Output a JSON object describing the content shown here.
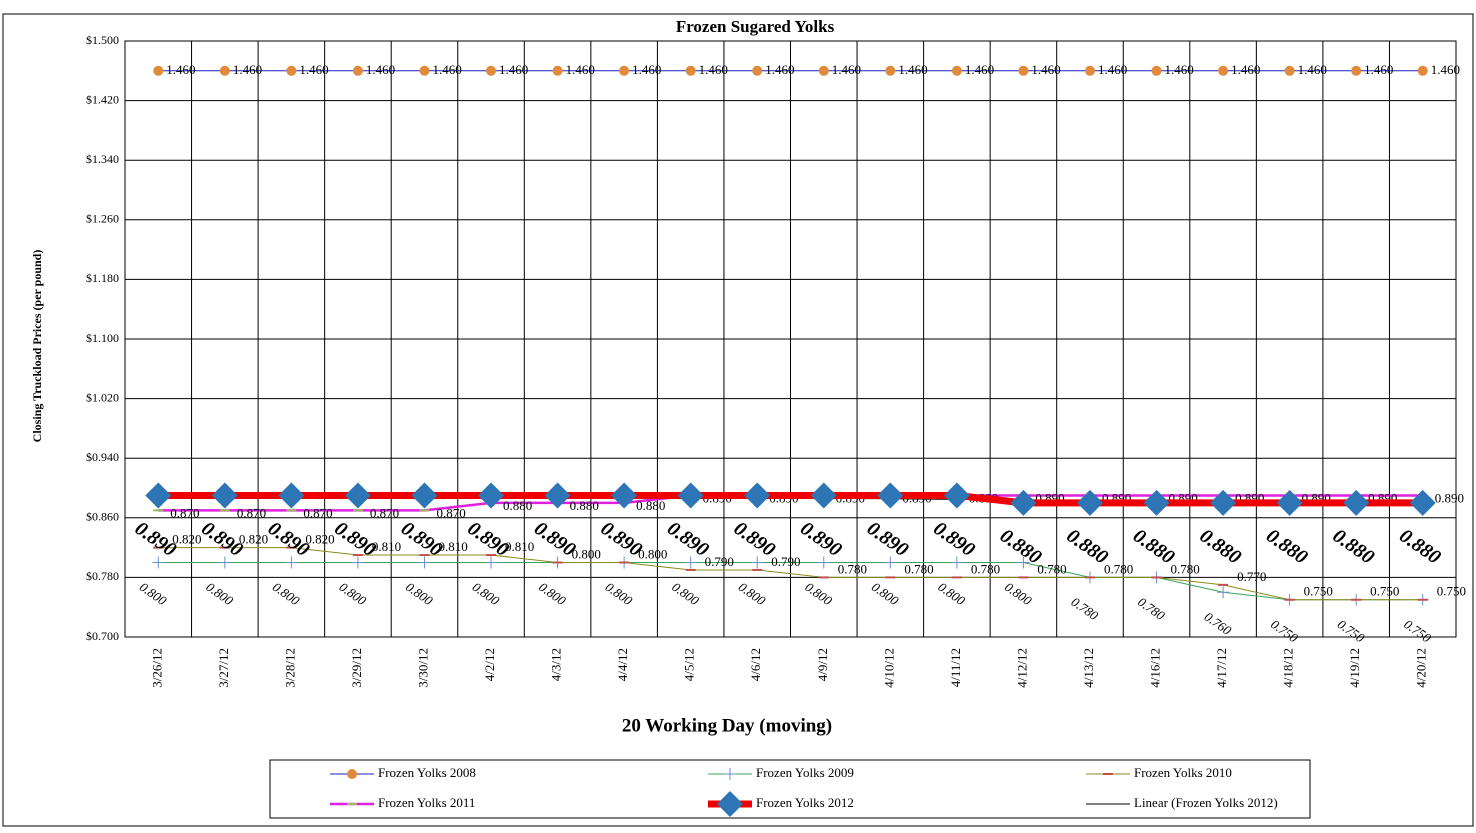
{
  "chart_data": {
    "type": "line",
    "title": "Frozen Sugared Yolks",
    "x_label": "20 Working Day (moving)",
    "y_label": "Closing Truckload Prices (per pound)",
    "categories": [
      "3/26/12",
      "3/27/12",
      "3/28/12",
      "3/29/12",
      "3/30/12",
      "4/2/12",
      "4/3/12",
      "4/4/12",
      "4/5/12",
      "4/6/12",
      "4/9/12",
      "4/10/12",
      "4/11/12",
      "4/12/12",
      "4/13/12",
      "4/16/12",
      "4/17/12",
      "4/18/12",
      "4/19/12",
      "4/20/12"
    ],
    "ylim": [
      0.7,
      1.5
    ],
    "yticks": [
      {
        "value": 0.7,
        "label": "$0.700"
      },
      {
        "value": 0.78,
        "label": "$0.780"
      },
      {
        "value": 0.86,
        "label": "$0.860"
      },
      {
        "value": 0.94,
        "label": "$0.940"
      },
      {
        "value": 1.02,
        "label": "$1.020"
      },
      {
        "value": 1.1,
        "label": "$1.100"
      },
      {
        "value": 1.18,
        "label": "$1.180"
      },
      {
        "value": 1.26,
        "label": "$1.260"
      },
      {
        "value": 1.34,
        "label": "$1.340"
      },
      {
        "value": 1.42,
        "label": "$1.420"
      },
      {
        "value": 1.5,
        "label": "$1.500"
      }
    ],
    "grid": true,
    "series": [
      {
        "name": "Frozen Yolks 2008",
        "color": "#1f1fbf",
        "marker_color": "#e08a3c",
        "values": [
          1.46,
          1.46,
          1.46,
          1.46,
          1.46,
          1.46,
          1.46,
          1.46,
          1.46,
          1.46,
          1.46,
          1.46,
          1.46,
          1.46,
          1.46,
          1.46,
          1.46,
          1.46,
          1.46,
          1.46
        ],
        "value_labels": [
          "1.460",
          "1.460",
          "1.460",
          "1.460",
          "1.460",
          "1.460",
          "1.460",
          "1.460",
          "1.460",
          "1.460",
          "1.460",
          "1.460",
          "1.460",
          "1.460",
          "1.460",
          "1.460",
          "1.460",
          "1.460",
          "1.460",
          "1.460"
        ]
      },
      {
        "name": "Frozen Yolks 2009",
        "color": "#3aa35a",
        "marker_color": "#6a8fd0",
        "values": [
          0.8,
          0.8,
          0.8,
          0.8,
          0.8,
          0.8,
          0.8,
          0.8,
          0.8,
          0.8,
          0.8,
          0.8,
          0.8,
          0.8,
          0.78,
          0.78,
          0.76,
          0.75,
          0.75,
          0.75
        ],
        "value_labels": [
          "0.800",
          "0.800",
          "0.800",
          "0.800",
          "0.800",
          "0.800",
          "0.800",
          "0.800",
          "0.800",
          "0.800",
          "0.800",
          "0.800",
          "0.800",
          "0.800",
          "0.780",
          "0.780",
          "0.760",
          "0.750",
          "0.750",
          "0.750"
        ]
      },
      {
        "name": "Frozen Yolks 2010",
        "color": "#8a8a1a",
        "marker_color": "#c0504d",
        "values": [
          0.82,
          0.82,
          0.82,
          0.81,
          0.81,
          0.81,
          0.8,
          0.8,
          0.79,
          0.79,
          0.78,
          0.78,
          0.78,
          0.78,
          0.78,
          0.78,
          0.77,
          0.75,
          0.75,
          0.75
        ],
        "value_labels": [
          "0.820",
          "0.820",
          "0.820",
          "0.810",
          "0.810",
          "0.810",
          "0.800",
          "0.800",
          "0.790",
          "0.790",
          "0.780",
          "0.780",
          "0.780",
          "0.780",
          "0.780",
          "0.780",
          "0.770",
          "0.750",
          "0.750",
          "0.750"
        ]
      },
      {
        "name": "Frozen Yolks 2011",
        "color": "#e020e0",
        "marker_color": "#9bbb59",
        "values": [
          0.87,
          0.87,
          0.87,
          0.87,
          0.87,
          0.88,
          0.88,
          0.88,
          0.89,
          0.89,
          0.89,
          0.89,
          0.89,
          0.89,
          0.89,
          0.89,
          0.89,
          0.89,
          0.89,
          0.89
        ],
        "value_labels": [
          "0.870",
          "0.870",
          "0.870",
          "0.870",
          "0.870",
          "0.880",
          "0.880",
          "0.880",
          "0.890",
          "0.890",
          "0.890",
          "0.890",
          "0.890",
          "0.890",
          "0.890",
          "0.890",
          "0.890",
          "0.890",
          "0.890",
          "0.890"
        ]
      },
      {
        "name": "Frozen Yolks 2012",
        "color": "#ee0000",
        "marker_color": "#2e75b6",
        "values": [
          0.89,
          0.89,
          0.89,
          0.89,
          0.89,
          0.89,
          0.89,
          0.89,
          0.89,
          0.89,
          0.89,
          0.89,
          0.89,
          0.88,
          0.88,
          0.88,
          0.88,
          0.88,
          0.88,
          0.88
        ],
        "value_labels": [
          "0.890",
          "0.890",
          "0.890",
          "0.890",
          "0.890",
          "0.890",
          "0.890",
          "0.890",
          "0.890",
          "0.890",
          "0.890",
          "0.890",
          "0.890",
          "0.880",
          "0.880",
          "0.880",
          "0.880",
          "0.880",
          "0.880",
          "0.880"
        ]
      },
      {
        "name": "Linear (Frozen Yolks 2012)",
        "color": "#000000",
        "values": [
          0.893,
          0.8923,
          0.8916,
          0.8909,
          0.8903,
          0.8896,
          0.8889,
          0.8882,
          0.8875,
          0.8868,
          0.8862,
          0.8855,
          0.8848,
          0.8841,
          0.8834,
          0.8827,
          0.8821,
          0.8814,
          0.8807,
          0.88
        ]
      }
    ]
  }
}
